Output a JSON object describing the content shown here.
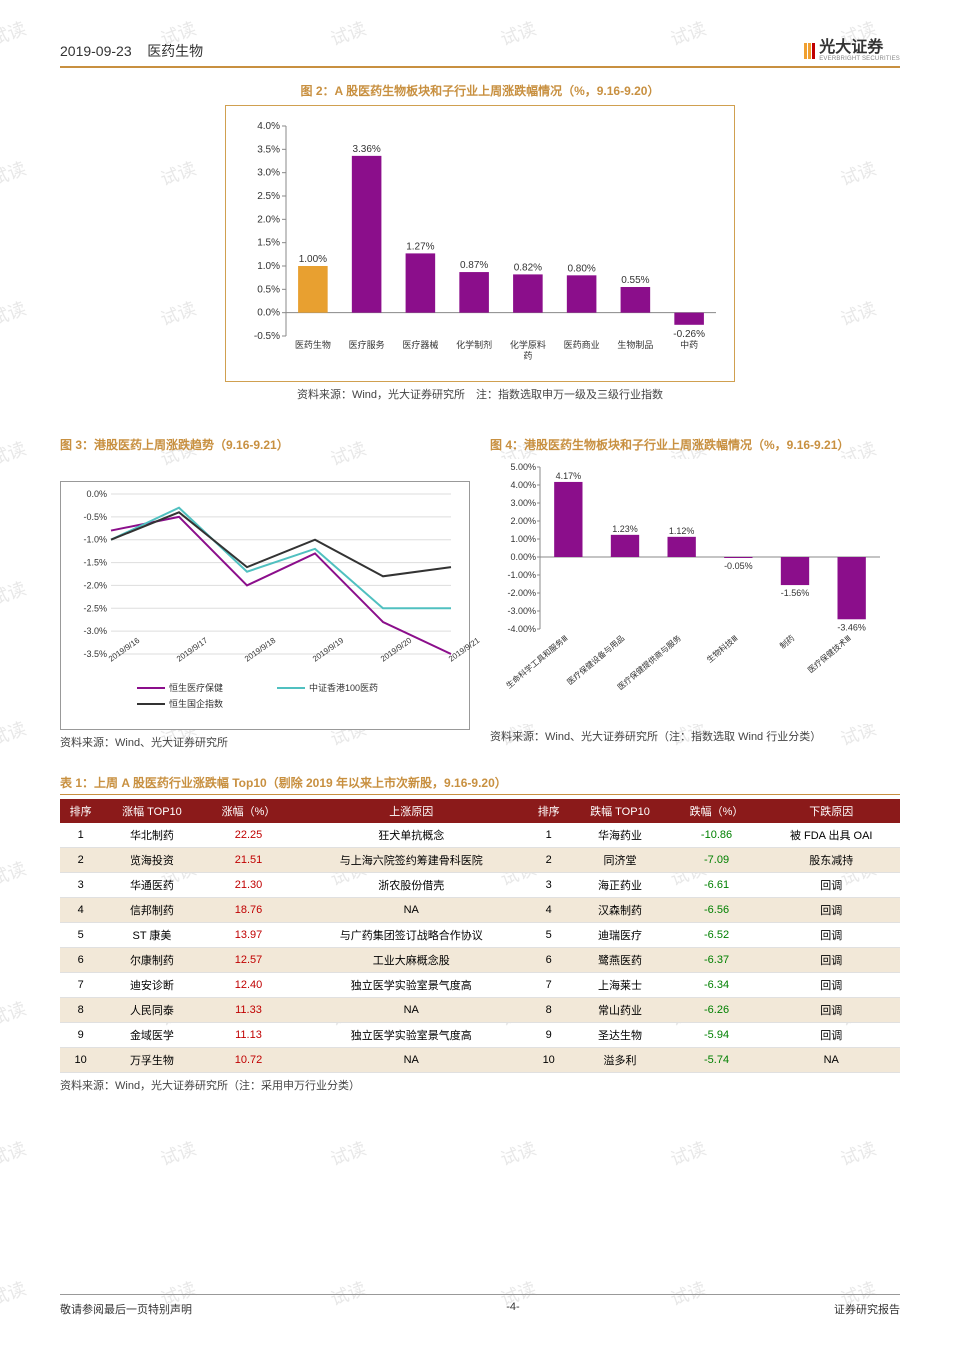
{
  "watermark_text": "试读",
  "header": {
    "date": "2019-09-23",
    "section": "医药生物",
    "brand": "光大证券",
    "brand_sub": "EVERBRIGHT SECURITIES",
    "logo_colors": [
      "#f0a030",
      "#f0a030",
      "#c00000"
    ]
  },
  "fig2": {
    "title": "图 2：A 股医药生物板块和子行业上周涨跌幅情况（%，9.16-9.20）",
    "type": "bar",
    "categories": [
      "医药生物",
      "医疗服务",
      "医疗器械",
      "化学制剂",
      "化学原料药",
      "医药商业",
      "生物制品",
      "中药"
    ],
    "values": [
      1.0,
      3.36,
      1.27,
      0.87,
      0.82,
      0.8,
      0.55,
      -0.26
    ],
    "labels": [
      "1.00%",
      "3.36%",
      "1.27%",
      "0.87%",
      "0.82%",
      "0.80%",
      "0.55%",
      "-0.26%"
    ],
    "bar_colors": [
      "#e8a030",
      "#8b0e8b",
      "#8b0e8b",
      "#8b0e8b",
      "#8b0e8b",
      "#8b0e8b",
      "#8b0e8b",
      "#8b0e8b"
    ],
    "ylim": [
      -0.5,
      4.0
    ],
    "ytick_step": 0.5,
    "ytick_labels": [
      "-0.5%",
      "0.0%",
      "0.5%",
      "1.0%",
      "1.5%",
      "2.0%",
      "2.5%",
      "3.0%",
      "3.5%",
      "4.0%"
    ],
    "label_fontsize": 10,
    "axis_color": "#888",
    "border_color": "#d0a050",
    "source": "资料来源：Wind，光大证券研究所　注：指数选取申万一级及三级行业指数"
  },
  "fig3": {
    "title": "图 3：港股医药上周涨跌趋势（9.16-9.21）",
    "type": "line",
    "x_labels": [
      "2019/9/16",
      "2019/9/17",
      "2019/9/18",
      "2019/9/19",
      "2019/9/20",
      "2019/9/21"
    ],
    "series": [
      {
        "name": "恒生医疗保健",
        "color": "#8b0e8b",
        "values": [
          -0.8,
          -0.5,
          -2.0,
          -1.3,
          -2.8,
          -3.5
        ]
      },
      {
        "name": "中证香港100医药",
        "color": "#50c0c0",
        "values": [
          -1.0,
          -0.3,
          -1.7,
          -1.2,
          -2.5,
          -2.5
        ]
      },
      {
        "name": "恒生国企指数",
        "color": "#333333",
        "values": [
          -1.0,
          -0.4,
          -1.6,
          -1.0,
          -1.8,
          -1.6
        ]
      }
    ],
    "ylim": [
      -3.5,
      0.0
    ],
    "ytick_step": 0.5,
    "ytick_labels": [
      "0.0%",
      "-0.5%",
      "-1.0%",
      "-1.5%",
      "-2.0%",
      "-2.5%",
      "-3.0%",
      "-3.5%"
    ],
    "border_color": "#999",
    "label_fontsize": 9,
    "source": "资料来源：Wind、光大证券研究所"
  },
  "fig4": {
    "title": "图 4：港股医药生物板块和子行业上周涨跌幅情况（%，9.16-9.21）",
    "type": "bar",
    "categories": [
      "生命科学工具和服务Ⅲ",
      "医疗保健设备与用品",
      "医疗保健提供商与服务",
      "生物科技Ⅲ",
      "制药",
      "医疗保健技术Ⅲ"
    ],
    "values": [
      4.17,
      1.23,
      1.12,
      -0.05,
      -1.56,
      -3.46
    ],
    "labels": [
      "4.17%",
      "1.23%",
      "1.12%",
      "-0.05%",
      "-1.56%",
      "-3.46%"
    ],
    "bar_colors": [
      "#8b0e8b",
      "#8b0e8b",
      "#8b0e8b",
      "#8b0e8b",
      "#8b0e8b",
      "#8b0e8b"
    ],
    "ylim": [
      -4.0,
      5.0
    ],
    "ytick_step": 1.0,
    "ytick_labels": [
      "5.00%",
      "4.00%",
      "3.00%",
      "2.00%",
      "1.00%",
      "0.00%",
      "-1.00%",
      "-2.00%",
      "-3.00%",
      "-4.00%"
    ],
    "label_fontsize": 9,
    "axis_color": "#888",
    "source": "资料来源：Wind、光大证券研究所（注：指数选取 Wind 行业分类）"
  },
  "table1": {
    "title": "表 1：上周 A 股医药行业涨跌幅 Top10（剔除 2019 年以来上市次新股，9.16-9.20）",
    "headers": [
      "排序",
      "涨幅 TOP10",
      "涨幅（%）",
      "上涨原因",
      "排序",
      "跌幅 TOP10",
      "跌幅（%）",
      "下跌原因"
    ],
    "header_bg": "#8b1a1a",
    "header_color": "#ffffff",
    "alt_row_bg": "#f2e8d8",
    "up_color": "#c00000",
    "down_color": "#008000",
    "rows": [
      {
        "r1": "1",
        "name1": "华北制药",
        "up": "22.25",
        "reason1": "狂犬单抗概念",
        "r2": "1",
        "name2": "华海药业",
        "down": "-10.86",
        "reason2": "被 FDA 出具 OAI"
      },
      {
        "r1": "2",
        "name1": "览海投资",
        "up": "21.51",
        "reason1": "与上海六院签约筹建骨科医院",
        "r2": "2",
        "name2": "同济堂",
        "down": "-7.09",
        "reason2": "股东减持"
      },
      {
        "r1": "3",
        "name1": "华通医药",
        "up": "21.30",
        "reason1": "浙农股份借壳",
        "r2": "3",
        "name2": "海正药业",
        "down": "-6.61",
        "reason2": "回调"
      },
      {
        "r1": "4",
        "name1": "信邦制药",
        "up": "18.76",
        "reason1": "NA",
        "r2": "4",
        "name2": "汉森制药",
        "down": "-6.56",
        "reason2": "回调"
      },
      {
        "r1": "5",
        "name1": "ST 康美",
        "up": "13.97",
        "reason1": "与广药集团签订战略合作协议",
        "r2": "5",
        "name2": "迪瑞医疗",
        "down": "-6.52",
        "reason2": "回调"
      },
      {
        "r1": "6",
        "name1": "尔康制药",
        "up": "12.57",
        "reason1": "工业大麻概念股",
        "r2": "6",
        "name2": "鹭燕医药",
        "down": "-6.37",
        "reason2": "回调"
      },
      {
        "r1": "7",
        "name1": "迪安诊断",
        "up": "12.40",
        "reason1": "独立医学实验室景气度高",
        "r2": "7",
        "name2": "上海莱士",
        "down": "-6.34",
        "reason2": "回调"
      },
      {
        "r1": "8",
        "name1": "人民同泰",
        "up": "11.33",
        "reason1": "NA",
        "r2": "8",
        "name2": "常山药业",
        "down": "-6.26",
        "reason2": "回调"
      },
      {
        "r1": "9",
        "name1": "金域医学",
        "up": "11.13",
        "reason1": "独立医学实验室景气度高",
        "r2": "9",
        "name2": "圣达生物",
        "down": "-5.94",
        "reason2": "回调"
      },
      {
        "r1": "10",
        "name1": "万孚生物",
        "up": "10.72",
        "reason1": "NA",
        "r2": "10",
        "name2": "溢多利",
        "down": "-5.74",
        "reason2": "NA"
      }
    ],
    "source": "资料来源：Wind，光大证券研究所（注：采用申万行业分类）"
  },
  "footer": {
    "left": "敬请参阅最后一页特别声明",
    "center": "-4-",
    "right": "证券研究报告"
  }
}
